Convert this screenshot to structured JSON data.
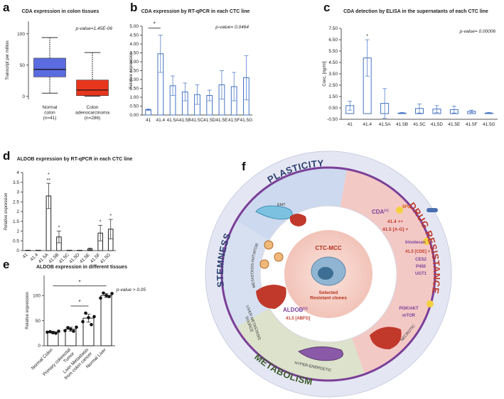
{
  "panels": [
    "a",
    "b",
    "c",
    "d",
    "e",
    "f"
  ],
  "chart_data": [
    {
      "type": "box",
      "title": "CDA expression in colon tissues",
      "annotation": "p-value=1.45E-06",
      "ylabel": "Transcript per million",
      "categories": [
        "Normal\ncolon\n(n=41)",
        "Colon\nadenocarcinoma\n(n=286)"
      ],
      "min": [
        5,
        0
      ],
      "q1": [
        31,
        1
      ],
      "median": [
        43,
        10
      ],
      "q3": [
        61,
        26
      ],
      "max": [
        94,
        70
      ],
      "colors": [
        "#5b6be0",
        "#e8361e"
      ],
      "ylim": [
        -5,
        120
      ],
      "yticks": [
        0,
        50,
        100
      ]
    },
    {
      "type": "bar",
      "title": "CDA expression by RT-qPCR in each CTC line",
      "annotation": "p-value= 0.0464",
      "ylabel": "Relative expression",
      "categories": [
        "41",
        "41.4",
        "41.5A",
        "41.5B",
        "41.5C",
        "41.5D",
        "41.5E",
        "41.5F",
        "41.5G"
      ],
      "values": [
        0.3,
        3.45,
        1.65,
        1.3,
        1.15,
        1.1,
        1.7,
        1.6,
        2.1
      ],
      "errors": [
        0.05,
        1.05,
        0.55,
        0.5,
        0.55,
        0.3,
        0.8,
        0.8,
        1.25
      ],
      "color": "#4472c4",
      "brackets": [
        {
          "from": "41",
          "to": "41.4",
          "label": "*"
        }
      ],
      "ylim": [
        0,
        5
      ],
      "yticks": [
        {
          "value": 0,
          "label": "0.00"
        },
        {
          "value": 0.5,
          "label": "0.50"
        },
        {
          "value": 1,
          "label": "1.00"
        },
        {
          "value": 1.5,
          "label": "1.50"
        },
        {
          "value": 2,
          "label": "2.00"
        },
        {
          "value": 2.5,
          "label": "2.50"
        },
        {
          "value": 3,
          "label": "3.00"
        },
        {
          "value": 3.5,
          "label": "3.50"
        },
        {
          "value": 4,
          "label": "4.00"
        },
        {
          "value": 4.5,
          "label": "4.50"
        },
        {
          "value": 5,
          "label": "5.00"
        }
      ]
    },
    {
      "type": "bar",
      "title": "CDA detection by ELISA in the supernatants of each CTC line",
      "annotation": "p-value= 0.00006",
      "ylabel": "Conc. [ng/ml]",
      "categories": [
        "41",
        "41.4",
        "41.5A",
        "41.5B",
        "41.5C",
        "41.5D",
        "41.5E",
        "41.5F",
        "41.5G"
      ],
      "values": [
        0.7,
        4.9,
        0.9,
        0.05,
        0.45,
        0.4,
        0.35,
        0.2,
        0.05
      ],
      "errors": [
        0.4,
        1.6,
        1.3,
        0.05,
        0.4,
        0.3,
        0.3,
        0.1,
        0.05
      ],
      "color": "#4472c4",
      "marks": [
        {
          "at": "41.4",
          "label": "*"
        }
      ],
      "ylim": [
        -0.5,
        7.5
      ],
      "yticks": [
        {
          "value": -0.5,
          "label": "-0.50"
        },
        {
          "value": 0.5,
          "label": "0.50"
        },
        {
          "value": 1.5,
          "label": "1.50"
        },
        {
          "value": 2.5,
          "label": "2.50"
        },
        {
          "value": 3.5,
          "label": "3.50"
        },
        {
          "value": 4.5,
          "label": "4.50"
        },
        {
          "value": 5.5,
          "label": "5.50"
        },
        {
          "value": 6.5,
          "label": "6.50"
        },
        {
          "value": 7.5,
          "label": "7.50"
        }
      ]
    },
    {
      "type": "bar",
      "title": "ALDOB expression by RT-qPCR in each CTC line",
      "ylabel": "Relative expression",
      "categories": [
        "41",
        "41.4",
        "41.5A",
        "41.5B",
        "41.5C",
        "41.5D",
        "41.5E",
        "41.5F",
        "41.5G"
      ],
      "values": [
        0.02,
        0.02,
        2.8,
        0.7,
        0.02,
        0.02,
        0.08,
        0.9,
        1.1
      ],
      "errors": [
        0,
        0,
        0.65,
        0.3,
        0,
        0,
        0.05,
        0.4,
        0.5
      ],
      "color": "#222222",
      "marks": [
        {
          "at": "41.5A",
          "label": "*\n**"
        },
        {
          "at": "41.5B",
          "label": "*"
        },
        {
          "at": "41.5F",
          "label": "*"
        },
        {
          "at": "41.5G",
          "label": "*"
        }
      ],
      "ylim": [
        0,
        4
      ],
      "yticks": [
        0,
        0.5,
        1,
        1.5,
        2,
        2.5,
        3,
        3.5,
        4
      ]
    },
    {
      "type": "bar",
      "title": "ALDOB expression in different tissues",
      "annotation": "p-value > 0.05",
      "ylabel": "Relative expression",
      "categories": [
        "Normal Colon",
        "Primary colorectal\nTumor",
        "Liver Metastasis\nfrom colon cancer",
        "Normal Liver"
      ],
      "values": [
        27,
        33,
        55,
        100
      ],
      "errors": [
        2,
        4,
        8,
        4
      ],
      "points": [
        [
          27,
          28,
          26,
          25,
          29
        ],
        [
          30,
          36,
          33,
          29,
          37
        ],
        [
          48,
          65,
          56,
          42,
          58
        ],
        [
          95,
          105,
          100,
          98,
          104
        ]
      ],
      "color": "#222222",
      "brackets": [
        {
          "from": "Normal Colon",
          "to": "Normal Liver",
          "label": "*"
        },
        {
          "from": "Primary colorectal\nTumor",
          "to": "Liver Metastasis\nfrom colon cancer",
          "label": "*"
        }
      ],
      "ylim": [
        0,
        140
      ],
      "yticks": [
        0,
        50,
        100
      ]
    }
  ],
  "diagram": {
    "center_title": "CTC-MCC",
    "center_subtitle": "Selected\nResistant clones",
    "plasticity": "PLASTICITY",
    "stemness": "STEMNESS",
    "drug_resistance": "DRUG RESISTANCE",
    "metabolism": "METABOLISM",
    "emt": "EMT",
    "metastasis_initiator": "METASTASIS-INITIATOR",
    "liver_source": "LIVER METASTASIS\nSOURCE",
    "hyper": "HYPER-ENERGETIC",
    "necrotic": "NECROTIC",
    "cda": {
      "label": "CDA",
      "sup": "(+)",
      "drug": "5FU",
      "lines": [
        "41.4 ++",
        "41.5 [A-G] +"
      ]
    },
    "irinotecan": {
      "drug": "Irinotecan",
      "lines": [
        "41.5 [CDE] +",
        "CES2",
        "P450",
        "UGT1"
      ]
    },
    "pathway": [
      "PI3K/AKT",
      "mTOR"
    ],
    "aldob": {
      "label": "ALDOB",
      "sup": "(+)",
      "line": "41.5 [ABFG]"
    }
  }
}
